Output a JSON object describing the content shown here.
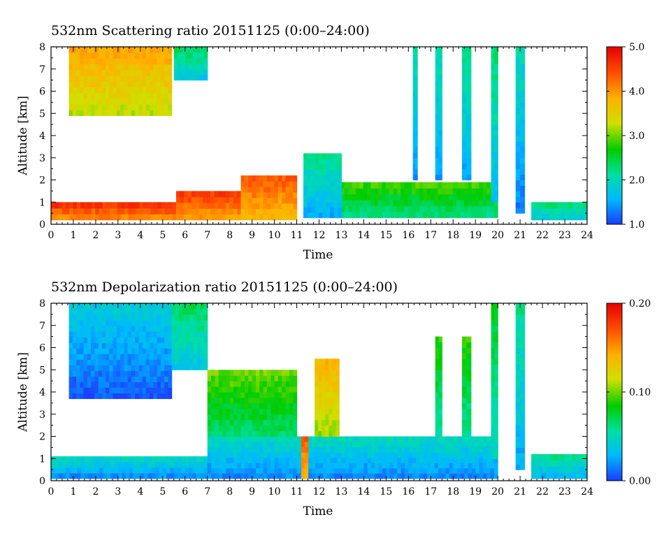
{
  "chart_data": [
    {
      "type": "heatmap",
      "title": "532nm Scattering ratio  20151125 (0:00–24:00)",
      "xlabel": "Time",
      "ylabel": "Altitude [km]",
      "xlim": [
        0,
        24
      ],
      "ylim": [
        0,
        8
      ],
      "x_ticks": [
        "0",
        "1",
        "2",
        "3",
        "4",
        "5",
        "6",
        "7",
        "8",
        "9",
        "10",
        "11",
        "12",
        "13",
        "14",
        "15",
        "16",
        "17",
        "18",
        "19",
        "20",
        "21",
        "22",
        "23",
        "24"
      ],
      "y_ticks": [
        "0",
        "1",
        "2",
        "3",
        "4",
        "5",
        "6",
        "7",
        "8"
      ],
      "colorbar": {
        "range": [
          1.0,
          5.0
        ],
        "ticks": [
          "1.0",
          "2.0",
          "3.0",
          "4.0",
          "5.0"
        ],
        "colors": [
          "#1a3cff",
          "#00b8ff",
          "#00e0a0",
          "#00cc00",
          "#d0e000",
          "#ffb000",
          "#ff5000",
          "#e60000"
        ]
      },
      "regions": [
        {
          "name": "upper cloud",
          "t0": 0.8,
          "t1": 5.4,
          "z0": 4.9,
          "z1": 8.0,
          "value": 3.5
        },
        {
          "name": "upper cloud fragment",
          "t0": 5.5,
          "t1": 7.0,
          "z0": 6.5,
          "z1": 8.0,
          "value": 2.0
        },
        {
          "name": "boundary layer",
          "t0": 0.0,
          "t1": 5.6,
          "z0": 0.2,
          "z1": 1.0,
          "value": 4.3
        },
        {
          "name": "boundary layer",
          "t0": 5.6,
          "t1": 8.5,
          "z0": 0.2,
          "z1": 1.5,
          "value": 4.2
        },
        {
          "name": "boundary layer",
          "t0": 8.5,
          "t1": 11.0,
          "z0": 0.2,
          "z1": 2.2,
          "value": 4.0
        },
        {
          "name": "aerosol layer",
          "t0": 11.3,
          "t1": 20.0,
          "z0": 0.3,
          "z1": 1.9,
          "value": 2.5
        },
        {
          "name": "aerosol layer",
          "t0": 11.3,
          "t1": 13.0,
          "z0": 0.3,
          "z1": 3.2,
          "value": 1.8
        },
        {
          "name": "cirrus streak",
          "t0": 16.2,
          "t1": 16.4,
          "z0": 2.0,
          "z1": 8.0,
          "value": 1.7
        },
        {
          "name": "cirrus streak",
          "t0": 17.2,
          "t1": 17.5,
          "z0": 2.0,
          "z1": 8.0,
          "value": 1.7
        },
        {
          "name": "cirrus streak",
          "t0": 18.4,
          "t1": 18.8,
          "z0": 2.0,
          "z1": 8.0,
          "value": 1.8
        },
        {
          "name": "cirrus streak",
          "t0": 19.7,
          "t1": 20.0,
          "z0": 1.0,
          "z1": 8.0,
          "value": 1.9
        },
        {
          "name": "cirrus streak",
          "t0": 20.8,
          "t1": 21.2,
          "z0": 0.5,
          "z1": 8.0,
          "value": 1.6
        },
        {
          "name": "low cloud",
          "t0": 21.5,
          "t1": 24.0,
          "z0": 0.2,
          "z1": 1.0,
          "value": 2.0
        }
      ]
    },
    {
      "type": "heatmap",
      "title": "532nm Depolarization ratio  20151125 (0:00–24:00)",
      "xlabel": "Time",
      "ylabel": "Altitude [km]",
      "xlim": [
        0,
        24
      ],
      "ylim": [
        0,
        8
      ],
      "x_ticks": [
        "0",
        "1",
        "2",
        "3",
        "4",
        "5",
        "6",
        "7",
        "8",
        "9",
        "10",
        "11",
        "12",
        "13",
        "14",
        "15",
        "16",
        "17",
        "18",
        "19",
        "20",
        "21",
        "22",
        "23",
        "24"
      ],
      "y_ticks": [
        "0",
        "1",
        "2",
        "3",
        "4",
        "5",
        "6",
        "7",
        "8"
      ],
      "colorbar": {
        "range": [
          0.0,
          0.2
        ],
        "ticks": [
          "0.00",
          "0.10",
          "0.20"
        ],
        "colors": [
          "#1a3cff",
          "#00b8ff",
          "#00e0a0",
          "#00cc00",
          "#d0e000",
          "#ffb000",
          "#ff5000",
          "#e60000"
        ]
      },
      "regions": [
        {
          "name": "upper cloud",
          "t0": 0.8,
          "t1": 5.4,
          "z0": 3.7,
          "z1": 8.0,
          "value": 0.02
        },
        {
          "name": "upper cloud",
          "t0": 5.4,
          "t1": 7.0,
          "z0": 5.0,
          "z1": 8.0,
          "value": 0.05
        },
        {
          "name": "boundary layer",
          "t0": 0.0,
          "t1": 7.0,
          "z0": 0.1,
          "z1": 1.1,
          "value": 0.03
        },
        {
          "name": "boundary layer",
          "t0": 7.0,
          "t1": 20.0,
          "z0": 0.1,
          "z1": 2.0,
          "value": 0.03
        },
        {
          "name": "dust plume",
          "t0": 7.0,
          "t1": 11.0,
          "z0": 2.0,
          "z1": 5.0,
          "value": 0.08
        },
        {
          "name": "dust plume",
          "t0": 11.2,
          "t1": 11.5,
          "z0": 0.1,
          "z1": 2.0,
          "value": 0.15
        },
        {
          "name": "dust plume",
          "t0": 11.8,
          "t1": 12.9,
          "z0": 2.0,
          "z1": 5.5,
          "value": 0.12
        },
        {
          "name": "cirrus streak",
          "t0": 17.2,
          "t1": 17.5,
          "z0": 2.0,
          "z1": 6.5,
          "value": 0.07
        },
        {
          "name": "cirrus streak",
          "t0": 18.4,
          "t1": 18.8,
          "z0": 2.0,
          "z1": 6.5,
          "value": 0.07
        },
        {
          "name": "cirrus streak",
          "t0": 19.7,
          "t1": 20.0,
          "z0": 1.0,
          "z1": 8.0,
          "value": 0.06
        },
        {
          "name": "cirrus streak",
          "t0": 20.8,
          "t1": 21.2,
          "z0": 0.5,
          "z1": 8.0,
          "value": 0.04
        },
        {
          "name": "low cloud",
          "t0": 21.5,
          "t1": 24.0,
          "z0": 0.1,
          "z1": 1.2,
          "value": 0.04
        }
      ]
    }
  ]
}
